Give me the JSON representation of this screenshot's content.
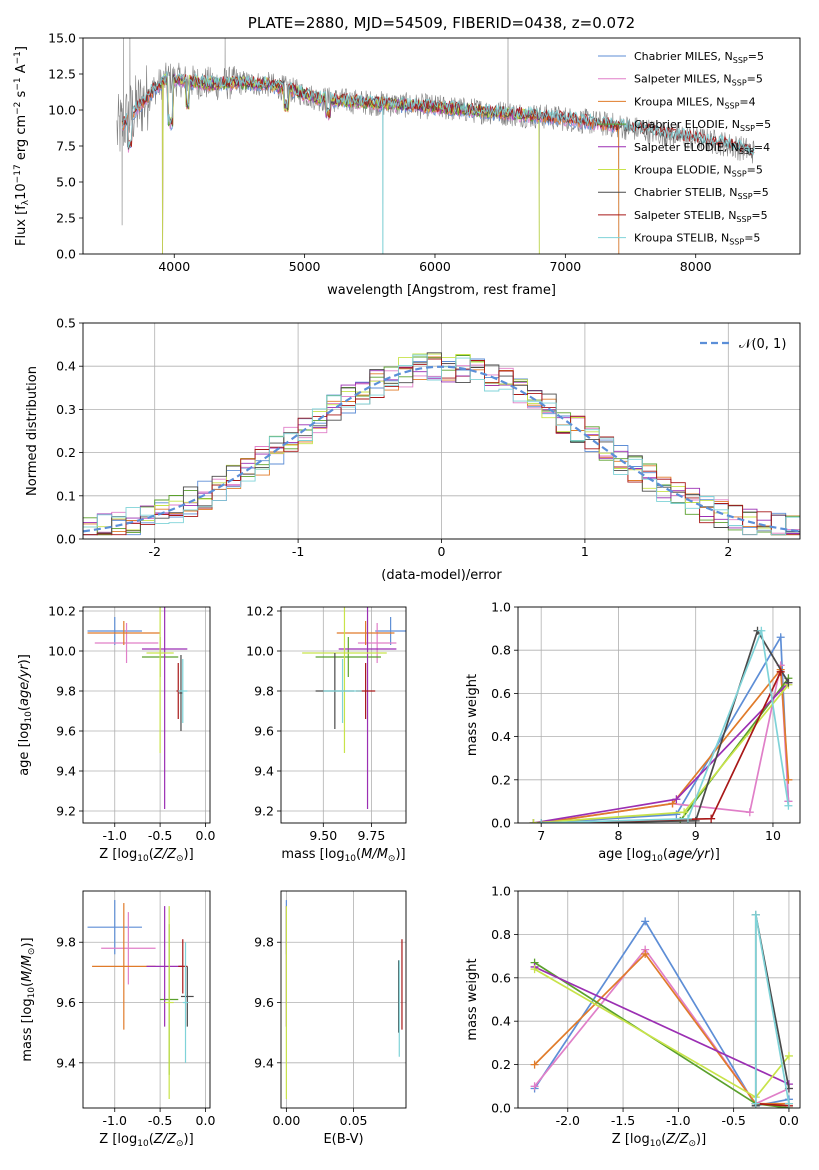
{
  "colors": {
    "Chabrier MILES": "#5e8ed6",
    "Salpeter MILES": "#e07fc8",
    "Kroupa MILES": "#e07b2a",
    "Chabrier ELODIE": "#5aa02c",
    "Salpeter ELODIE": "#9b2fb3",
    "Kroupa ELODIE": "#c8e34a",
    "Chabrier STELIB": "#4a4a4a",
    "Salpeter STELIB": "#a81818",
    "Kroupa STELIB": "#7fd3d8",
    "data": "#808080",
    "gauss": "#5b8fd8"
  },
  "chart_data": [
    {
      "id": "spectrum",
      "type": "line",
      "title": "PLATE=2880, MJD=54509, FIBERID=0438, z=0.072",
      "xlabel": "wavelength [Angstrom, rest frame]",
      "ylabel": "Flux [f_λ10^{-17} erg cm^{-2} s^{-1} A^{-1}]",
      "xlim": [
        3300,
        8800
      ],
      "ylim": [
        0,
        15
      ],
      "xticks": [
        4000,
        5000,
        6000,
        7000,
        8000
      ],
      "yticks": [
        0.0,
        2.5,
        5.0,
        7.5,
        10.0,
        12.5,
        15.0
      ],
      "legend_position": "top-right",
      "legend": [
        {
          "name": "Chabrier MILES",
          "nssp": "5"
        },
        {
          "name": "Salpeter MILES",
          "nssp": "5"
        },
        {
          "name": "Kroupa MILES",
          "nssp": "4"
        },
        {
          "name": "Chabrier ELODIE",
          "nssp": "5"
        },
        {
          "name": "Salpeter ELODIE",
          "nssp": "4"
        },
        {
          "name": "Kroupa ELODIE",
          "nssp": "5"
        },
        {
          "name": "Chabrier STELIB",
          "nssp": "5"
        },
        {
          "name": "Salpeter STELIB",
          "nssp": "5"
        },
        {
          "name": "Kroupa STELIB",
          "nssp": "5"
        }
      ],
      "continuum": [
        [
          3560,
          8.5
        ],
        [
          3700,
          10
        ],
        [
          3850,
          11.5
        ],
        [
          3950,
          12.2
        ],
        [
          4100,
          12.0
        ],
        [
          4300,
          11.8
        ],
        [
          4500,
          11.9
        ],
        [
          4700,
          11.8
        ],
        [
          4900,
          11.4
        ],
        [
          5100,
          10.8
        ],
        [
          5500,
          10.5
        ],
        [
          6000,
          10.2
        ],
        [
          6500,
          9.8
        ],
        [
          7000,
          9.4
        ],
        [
          7400,
          8.9
        ],
        [
          7800,
          8.3
        ],
        [
          8200,
          7.7
        ],
        [
          8450,
          7.1
        ]
      ],
      "data_spikes": [
        [
          3610,
          15
        ],
        [
          3660,
          15
        ],
        [
          3600,
          2
        ],
        [
          3910,
          0
        ],
        [
          4390,
          15
        ],
        [
          5600,
          0
        ],
        [
          6560,
          15
        ],
        [
          6800,
          0
        ],
        [
          7410,
          0
        ]
      ]
    },
    {
      "id": "residuals",
      "type": "histogram",
      "xlabel": "(data-model)/error",
      "ylabel": "Normed distribution",
      "xlim": [
        -2.5,
        2.5
      ],
      "ylim": [
        0,
        0.5
      ],
      "xticks": [
        -2,
        -1,
        0,
        1,
        2
      ],
      "yticks": [
        0.0,
        0.1,
        0.2,
        0.3,
        0.4,
        0.5
      ],
      "legend_position": "top-right",
      "legend": "𝒩(0, 1)",
      "bin_width": 0.1
    },
    {
      "id": "age_vs_Z",
      "type": "errorbar",
      "xlabel": "Z [log₁₀(Z/Z☉)]",
      "ylabel": "age  [log₁₀(age/yr)]",
      "xlim": [
        -1.35,
        0.05
      ],
      "ylim": [
        9.14,
        10.22
      ],
      "xticks": [
        -1.0,
        -0.5,
        0.0
      ],
      "yticks": [
        9.2,
        9.4,
        9.6,
        9.8,
        10.0,
        10.2
      ],
      "points": [
        {
          "model": "Chabrier MILES",
          "x": -1.0,
          "xerr": 0.3,
          "y": 10.1,
          "yerr": 0.07
        },
        {
          "model": "Salpeter MILES",
          "x": -0.87,
          "xerr": 0.35,
          "y": 10.04,
          "yerr": 0.1
        },
        {
          "model": "Kroupa MILES",
          "x": -0.9,
          "xerr": 0.4,
          "y": 10.09,
          "yerr": 0.06
        },
        {
          "model": "Chabrier ELODIE",
          "x": -0.5,
          "xerr": 0.2,
          "y": 9.97,
          "yerr": 0.1
        },
        {
          "model": "Salpeter ELODIE",
          "x": -0.45,
          "xerr": 0.25,
          "y": 10.01,
          "yerr": 0.8
        },
        {
          "model": "Kroupa ELODIE",
          "x": -0.5,
          "xerr": 0.15,
          "y": 9.99,
          "yerr": 0.5
        },
        {
          "model": "Chabrier STELIB",
          "x": -0.27,
          "xerr": 0.02,
          "y": 9.79,
          "yerr": 0.19
        },
        {
          "model": "Salpeter STELIB",
          "x": -0.3,
          "xerr": 0.02,
          "y": 9.8,
          "yerr": 0.14
        },
        {
          "model": "Kroupa STELIB",
          "x": -0.25,
          "xerr": 0.05,
          "y": 9.8,
          "yerr": 0.16
        }
      ]
    },
    {
      "id": "age_vs_mass",
      "type": "errorbar",
      "xlabel": "mass [log₁₀(M/M☉)]",
      "ylabel": "",
      "xlim": [
        9.28,
        9.93
      ],
      "ylim": [
        9.14,
        10.22
      ],
      "xticks": [
        9.5,
        9.75
      ],
      "yticks": [
        9.2,
        9.4,
        9.6,
        9.8,
        10.0,
        10.2
      ],
      "points": [
        {
          "model": "Chabrier MILES",
          "x": 9.85,
          "xerr": 0.08,
          "y": 10.1,
          "yerr": 0.07
        },
        {
          "model": "Salpeter MILES",
          "x": 9.78,
          "xerr": 0.1,
          "y": 10.04,
          "yerr": 0.1
        },
        {
          "model": "Kroupa MILES",
          "x": 9.72,
          "xerr": 0.15,
          "y": 10.09,
          "yerr": 0.06
        },
        {
          "model": "Chabrier ELODIE",
          "x": 9.63,
          "xerr": 0.17,
          "y": 9.97,
          "yerr": 0.1
        },
        {
          "model": "Salpeter ELODIE",
          "x": 9.73,
          "xerr": 0.15,
          "y": 10.01,
          "yerr": 0.8
        },
        {
          "model": "Kroupa ELODIE",
          "x": 9.61,
          "xerr": 0.22,
          "y": 9.99,
          "yerr": 0.5
        },
        {
          "model": "Chabrier STELIB",
          "x": 9.56,
          "xerr": 0.1,
          "y": 9.8,
          "yerr": 0.19
        },
        {
          "model": "Salpeter STELIB",
          "x": 9.72,
          "xerr": 0.05,
          "y": 9.8,
          "yerr": 0.14
        },
        {
          "model": "Kroupa STELIB",
          "x": 9.6,
          "xerr": 0.1,
          "y": 9.8,
          "yerr": 0.16
        }
      ]
    },
    {
      "id": "weight_vs_age",
      "type": "line",
      "xlabel": "age  [log₁₀(age/yr)]",
      "ylabel": "mass weight",
      "xlim": [
        6.7,
        10.35
      ],
      "ylim": [
        0,
        1
      ],
      "xticks": [
        7,
        8,
        9,
        10
      ],
      "yticks": [
        0.0,
        0.2,
        0.4,
        0.6,
        0.8,
        1.0
      ],
      "series": [
        {
          "model": "Chabrier MILES",
          "x": [
            7.0,
            8.75,
            10.1,
            10.2
          ],
          "y": [
            0.0,
            0.04,
            0.86,
            0.1
          ]
        },
        {
          "model": "Salpeter MILES",
          "x": [
            7.0,
            8.7,
            9.7,
            10.1,
            10.2
          ],
          "y": [
            0.0,
            0.09,
            0.05,
            0.73,
            0.1
          ]
        },
        {
          "model": "Kroupa MILES",
          "x": [
            7.0,
            8.7,
            10.1,
            10.2
          ],
          "y": [
            0.0,
            0.09,
            0.71,
            0.2
          ]
        },
        {
          "model": "Chabrier ELODIE",
          "x": [
            6.9,
            8.8,
            10.2
          ],
          "y": [
            0.0,
            0.01,
            0.67
          ]
        },
        {
          "model": "Salpeter ELODIE",
          "x": [
            6.9,
            8.75,
            10.2
          ],
          "y": [
            0.0,
            0.11,
            0.65
          ]
        },
        {
          "model": "Kroupa ELODIE",
          "x": [
            6.9,
            8.85,
            10.2
          ],
          "y": [
            0.0,
            0.05,
            0.64
          ]
        },
        {
          "model": "Chabrier STELIB",
          "x": [
            7.0,
            9.0,
            9.8,
            10.2
          ],
          "y": [
            0.0,
            0.01,
            0.89,
            0.65
          ]
        },
        {
          "model": "Salpeter STELIB",
          "x": [
            7.0,
            9.2,
            10.1
          ],
          "y": [
            0.0,
            0.02,
            0.7
          ]
        },
        {
          "model": "Kroupa STELIB",
          "x": [
            7.0,
            8.9,
            9.85,
            10.2
          ],
          "y": [
            0.0,
            0.02,
            0.89,
            0.08
          ]
        }
      ]
    },
    {
      "id": "mass_vs_Z",
      "type": "errorbar",
      "xlabel": "Z [log₁₀(Z/Z☉)]",
      "ylabel": "mass [log₁₀(M/M☉)]",
      "xlim": [
        -1.35,
        0.05
      ],
      "ylim": [
        9.25,
        9.97
      ],
      "xticks": [
        -1.0,
        -0.5,
        0.0
      ],
      "yticks": [
        9.4,
        9.6,
        9.8
      ],
      "points": [
        {
          "model": "Chabrier MILES",
          "x": -1.0,
          "xerr": 0.3,
          "y": 9.85,
          "yerr": 0.09
        },
        {
          "model": "Salpeter MILES",
          "x": -0.85,
          "xerr": 0.3,
          "y": 9.78,
          "yerr": 0.12
        },
        {
          "model": "Kroupa MILES",
          "x": -0.9,
          "xerr": 0.35,
          "y": 9.72,
          "yerr": 0.21
        },
        {
          "model": "Chabrier ELODIE",
          "x": -0.4,
          "xerr": 0.1,
          "y": 9.61,
          "yerr": 0.25
        },
        {
          "model": "Salpeter ELODIE",
          "x": -0.45,
          "xerr": 0.2,
          "y": 9.72,
          "yerr": 0.2
        },
        {
          "model": "Kroupa ELODIE",
          "x": -0.4,
          "xerr": 0.05,
          "y": 9.6,
          "yerr": 0.32
        },
        {
          "model": "Chabrier STELIB",
          "x": -0.2,
          "xerr": 0.07,
          "y": 9.62,
          "yerr": 0.1
        },
        {
          "model": "Salpeter STELIB",
          "x": -0.25,
          "xerr": 0.05,
          "y": 9.72,
          "yerr": 0.09
        },
        {
          "model": "Kroupa STELIB",
          "x": -0.22,
          "xerr": 0.03,
          "y": 9.6,
          "yerr": 0.2
        }
      ]
    },
    {
      "id": "mass_vs_EBV",
      "type": "errorbar",
      "xlabel": "E(B-V)",
      "ylabel": "",
      "xlim": [
        -0.004,
        0.089
      ],
      "ylim": [
        9.25,
        9.97
      ],
      "xticks": [
        0.0,
        0.05
      ],
      "yticks": [
        9.4,
        9.6,
        9.8
      ],
      "points": [
        {
          "model": "Chabrier MILES",
          "x": 0.0,
          "xerr": 0,
          "y": 9.85,
          "yerr": 0.09
        },
        {
          "model": "Salpeter ELODIE",
          "x": 0.0,
          "xerr": 0,
          "y": 9.72,
          "yerr": 0.2
        },
        {
          "model": "Kroupa ELODIE",
          "x": 0.0,
          "xerr": 0,
          "y": 9.6,
          "yerr": 0.32
        },
        {
          "model": "Chabrier STELIB",
          "x": 0.0835,
          "xerr": 0,
          "y": 9.62,
          "yerr": 0.12
        },
        {
          "model": "Kroupa STELIB",
          "x": 0.084,
          "xerr": 0,
          "y": 9.58,
          "yerr": 0.16
        },
        {
          "model": "Salpeter STELIB",
          "x": 0.086,
          "xerr": 0,
          "y": 9.66,
          "yerr": 0.15
        }
      ]
    },
    {
      "id": "weight_vs_Z",
      "type": "line",
      "xlabel": "Z [log₁₀(Z/Z☉)]",
      "ylabel": "mass weight",
      "xlim": [
        -2.45,
        0.1
      ],
      "ylim": [
        0,
        1
      ],
      "xticks": [
        -2.0,
        -1.5,
        -1.0,
        -0.5,
        0.0
      ],
      "yticks": [
        0.0,
        0.2,
        0.4,
        0.6,
        0.8,
        1.0
      ],
      "series": [
        {
          "model": "Chabrier MILES",
          "x": [
            -2.3,
            -1.3,
            -0.3,
            0.0
          ],
          "y": [
            0.09,
            0.86,
            0.01,
            0.04
          ]
        },
        {
          "model": "Salpeter MILES",
          "x": [
            -2.3,
            -1.3,
            -0.3,
            0.0
          ],
          "y": [
            0.1,
            0.73,
            0.02,
            0.09
          ]
        },
        {
          "model": "Kroupa MILES",
          "x": [
            -2.3,
            -1.3,
            -0.3,
            0.0
          ],
          "y": [
            0.2,
            0.71,
            0.02,
            0.02
          ]
        },
        {
          "model": "Chabrier ELODIE",
          "x": [
            -2.3,
            -0.3,
            0.0
          ],
          "y": [
            0.67,
            0.02,
            0.0
          ]
        },
        {
          "model": "Salpeter ELODIE",
          "x": [
            -2.3,
            0.0
          ],
          "y": [
            0.65,
            0.11
          ]
        },
        {
          "model": "Kroupa ELODIE",
          "x": [
            -2.3,
            -0.3,
            0.0
          ],
          "y": [
            0.64,
            0.05,
            0.24
          ]
        },
        {
          "model": "Chabrier STELIB",
          "x": [
            -0.3,
            -0.3,
            0.0
          ],
          "y": [
            0.01,
            0.89,
            0.09
          ]
        },
        {
          "model": "Salpeter STELIB",
          "x": [
            -0.3,
            0.0
          ],
          "y": [
            0.02,
            0.01
          ]
        },
        {
          "model": "Kroupa STELIB",
          "x": [
            -0.3,
            -0.3,
            0.0
          ],
          "y": [
            0.02,
            0.89,
            0.02
          ]
        }
      ]
    }
  ]
}
